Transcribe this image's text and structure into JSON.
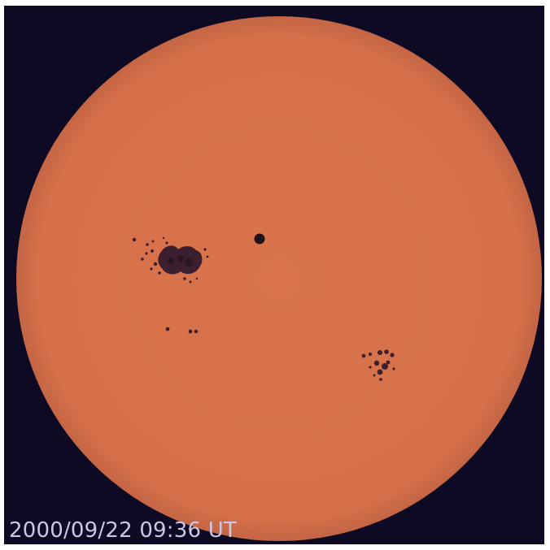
{
  "image": {
    "timestamp": "2000/09/22 09:36 UT",
    "colors": {
      "sky": "#0e0a24",
      "disk": "#d9744b",
      "sunspot": "#3b1f2e",
      "label": "#c9c7e6"
    }
  }
}
